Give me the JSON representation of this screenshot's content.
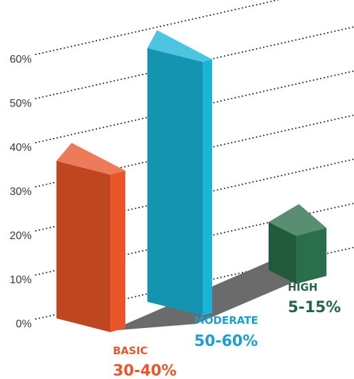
{
  "chart_data": {
    "type": "bar",
    "style": "3d-perspective",
    "grid": true,
    "ylim": [
      0,
      60
    ],
    "yticks": [
      "0%",
      "10%",
      "20%",
      "30%",
      "40%",
      "50%",
      "60%"
    ],
    "categories": [
      {
        "name": "BASIC",
        "range": "30-40%",
        "value_low": 30,
        "value_high": 40,
        "value": 36,
        "color": "#e8562a"
      },
      {
        "name": "MODERATE",
        "range": "50-60%",
        "value_low": 50,
        "value_high": 60,
        "value": 58,
        "color": "#1ab4d8"
      },
      {
        "name": "HIGH",
        "range": "5-15%",
        "value_low": 5,
        "value_high": 15,
        "value": 11,
        "color": "#2a6e4c"
      }
    ]
  }
}
